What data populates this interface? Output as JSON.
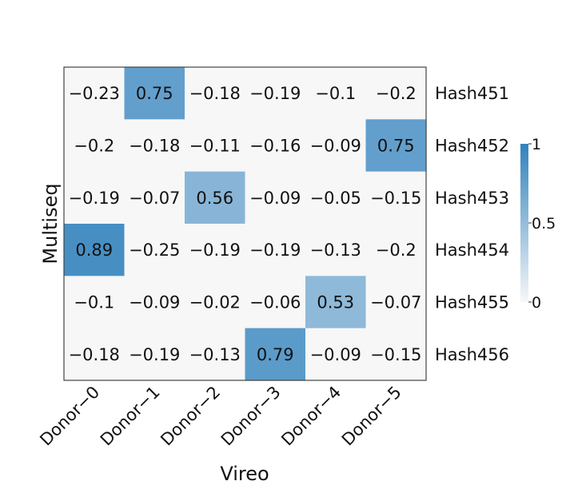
{
  "chart_data": {
    "type": "heatmap",
    "title": "",
    "xlabel": "Vireo",
    "ylabel": "Multiseq",
    "x_categories": [
      "Donor−0",
      "Donor−1",
      "Donor−2",
      "Donor−3",
      "Donor−4",
      "Donor−5"
    ],
    "y_categories": [
      "Hash451",
      "Hash452",
      "Hash453",
      "Hash454",
      "Hash455",
      "Hash456"
    ],
    "values": [
      [
        -0.23,
        0.75,
        -0.18,
        -0.19,
        -0.1,
        -0.2
      ],
      [
        -0.2,
        -0.18,
        -0.11,
        -0.16,
        -0.09,
        0.75
      ],
      [
        -0.19,
        -0.07,
        0.56,
        -0.09,
        -0.05,
        -0.15
      ],
      [
        0.89,
        -0.25,
        -0.19,
        -0.19,
        -0.13,
        -0.2
      ],
      [
        -0.1,
        -0.09,
        -0.02,
        -0.06,
        0.53,
        -0.07
      ],
      [
        -0.18,
        -0.19,
        -0.13,
        0.79,
        -0.09,
        -0.15
      ]
    ],
    "cell_labels": [
      [
        "−0.23",
        "0.75",
        "−0.18",
        "−0.19",
        "−0.1",
        "−0.2"
      ],
      [
        "−0.2",
        "−0.18",
        "−0.11",
        "−0.16",
        "−0.09",
        "0.75"
      ],
      [
        "−0.19",
        "−0.07",
        "0.56",
        "−0.09",
        "−0.05",
        "−0.15"
      ],
      [
        "0.89",
        "−0.25",
        "−0.19",
        "−0.19",
        "−0.13",
        "−0.2"
      ],
      [
        "−0.1",
        "−0.09",
        "−0.02",
        "−0.06",
        "0.53",
        "−0.07"
      ],
      [
        "−0.18",
        "−0.19",
        "−0.13",
        "0.79",
        "−0.09",
        "−0.15"
      ]
    ],
    "color_scale": {
      "range": [
        0,
        1
      ],
      "low_color": "#f7f7f7",
      "high_color": "#3182bd",
      "ticks": [
        0,
        0.5,
        1
      ],
      "tick_labels": [
        "0",
        "0.5",
        "1"
      ]
    },
    "grid": false,
    "legend": "right"
  }
}
